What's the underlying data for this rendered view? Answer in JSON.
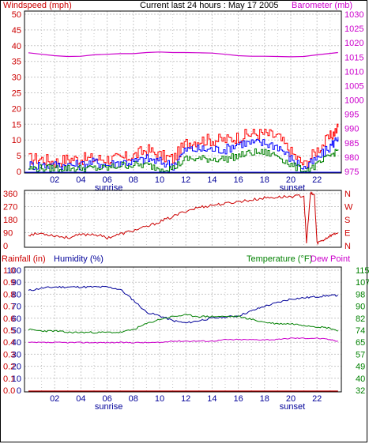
{
  "colors": {
    "wind_label": "#cc0000",
    "wind_high": "#ff0000",
    "wind_avg": "#0000ff",
    "wind_low": "#008000",
    "barometer": "#cc00cc",
    "direction": "#cc0000",
    "rain": "#cc0000",
    "humidity": "#000099",
    "temperature": "#008000",
    "dewpoint": "#cc00cc",
    "grid": "#c8c8c8",
    "frame": "#000000"
  },
  "chart_data": [
    {
      "type": "line",
      "title": "Current last 24 hours : May 17 2005",
      "left_axis_label": "Windspeed (mph)",
      "right_axis_label": "Barometer (mb)",
      "x_ticks": [
        "02",
        "04",
        "06",
        "08",
        "10",
        "12",
        "14",
        "16",
        "18",
        "20",
        "22"
      ],
      "x_annotations": [
        {
          "text": "sunrise",
          "at": "06"
        },
        {
          "text": "sunset",
          "at": "20"
        }
      ],
      "ylim_left": [
        0,
        50
      ],
      "yticks_left": [
        "0",
        "5",
        "10",
        "15",
        "20",
        "25",
        "30",
        "35",
        "40",
        "45",
        "50"
      ],
      "ylim_right": [
        975,
        1030
      ],
      "yticks_right": [
        "975",
        "980",
        "985",
        "990",
        "995",
        "1000",
        "1005",
        "1010",
        "1015",
        "1020",
        "1025",
        "1030"
      ],
      "hours": [
        0,
        1,
        2,
        3,
        4,
        5,
        6,
        7,
        8,
        9,
        10,
        11,
        12,
        13,
        14,
        15,
        16,
        17,
        18,
        19,
        20,
        21,
        22,
        23,
        23.6
      ],
      "series": [
        {
          "values": [
            4,
            4,
            3,
            4,
            4,
            4,
            4,
            4,
            5,
            7,
            5,
            4,
            9,
            10,
            10,
            10,
            11,
            12,
            12,
            11,
            6,
            2,
            7,
            11,
            14
          ]
        },
        {
          "values": [
            2,
            2,
            2,
            2,
            2,
            3,
            2,
            3,
            3,
            4,
            3,
            2,
            7,
            7,
            7,
            7,
            9,
            9,
            9,
            8,
            4,
            1,
            4,
            8,
            11
          ]
        },
        {
          "values": [
            1,
            1,
            1,
            1,
            1,
            1,
            1,
            2,
            2,
            2,
            1,
            1,
            4,
            4,
            4,
            4,
            5,
            6,
            6,
            5,
            2,
            0,
            2,
            5,
            7
          ]
        },
        {
          "axis": "right",
          "values": [
            1016.5,
            1016.0,
            1015.5,
            1015.2,
            1015.3,
            1015.8,
            1016.0,
            1016.2,
            1016.2,
            1016.6,
            1016.8,
            1016.6,
            1016.6,
            1016.5,
            1016.4,
            1016.0,
            1015.5,
            1015.3,
            1015.3,
            1015.2,
            1015.1,
            1015.2,
            1015.8,
            1016.3,
            1016.6
          ]
        }
      ]
    },
    {
      "type": "line",
      "right_axis_label_letters": [
        "N",
        "W",
        "S",
        "E",
        "N"
      ],
      "ylim": [
        0,
        360
      ],
      "yticks": [
        "0",
        "90",
        "180",
        "270",
        "360"
      ],
      "hours": [
        0,
        1,
        2,
        3,
        4,
        5,
        6,
        7,
        8,
        9,
        10,
        11,
        12,
        13,
        14,
        15,
        16,
        17,
        18,
        19,
        20,
        21,
        21.2,
        21.5,
        21.8,
        22,
        22.5,
        23,
        23.6
      ],
      "series": [
        {
          "values": [
            75,
            85,
            70,
            55,
            75,
            80,
            55,
            80,
            105,
            130,
            165,
            200,
            240,
            265,
            280,
            290,
            305,
            315,
            330,
            335,
            340,
            345,
            20,
            360,
            350,
            20,
            40,
            70,
            90
          ]
        }
      ]
    },
    {
      "type": "line",
      "left_axis_label_1": "Rainfall (in)",
      "left_axis_label_2": "Humidity (%)",
      "right_axis_label_1": "Temperature (°F)",
      "right_axis_label_2": "Dew Point",
      "x_ticks": [
        "02",
        "04",
        "06",
        "08",
        "10",
        "12",
        "14",
        "16",
        "18",
        "20",
        "22"
      ],
      "x_annotations": [
        {
          "text": "sunrise",
          "at": "06"
        },
        {
          "text": "sunset",
          "at": "20"
        }
      ],
      "ylim_rain": [
        0,
        1.0
      ],
      "yticks_rain": [
        "0.0",
        "0.1",
        "0.2",
        "0.3",
        "0.4",
        "0.5",
        "0.6",
        "0.7",
        "0.8",
        "0.9",
        "1.0"
      ],
      "ylim_humidity": [
        0,
        100
      ],
      "yticks_humidity": [
        "0",
        "10",
        "20",
        "30",
        "40",
        "50",
        "60",
        "70",
        "80",
        "90",
        "100"
      ],
      "ylim_temp": [
        32,
        115
      ],
      "yticks_temp": [
        "32",
        "40",
        "49",
        "57",
        "65",
        "74",
        "82",
        "90",
        "98",
        "107",
        "115"
      ],
      "hours": [
        0,
        1,
        2,
        3,
        4,
        5,
        6,
        7,
        8,
        9,
        10,
        11,
        12,
        13,
        14,
        15,
        16,
        17,
        18,
        19,
        20,
        21,
        22,
        23,
        23.6
      ],
      "series": [
        {
          "axis": "rain",
          "values": [
            0,
            0,
            0,
            0,
            0,
            0,
            0,
            0,
            0,
            0,
            0,
            0,
            0,
            0,
            0,
            0,
            0,
            0,
            0,
            0,
            0,
            0,
            0,
            0,
            0
          ]
        },
        {
          "axis": "humidity",
          "values": [
            83,
            85,
            86,
            86,
            86,
            86,
            86,
            84,
            75,
            65,
            62,
            58,
            56,
            58,
            60,
            61,
            62,
            66,
            70,
            73,
            76,
            77,
            78,
            79,
            79
          ]
        },
        {
          "axis": "temp",
          "values": [
            74,
            73,
            73,
            72,
            72,
            72,
            72,
            72,
            74,
            78,
            81,
            83,
            84,
            83,
            83,
            83,
            83,
            81,
            79,
            78,
            78,
            77,
            76,
            75,
            73
          ]
        },
        {
          "axis": "temp",
          "values": [
            65,
            65,
            65,
            65,
            65,
            65,
            65,
            65,
            65,
            65,
            65,
            66,
            66,
            66,
            66,
            67,
            67,
            67,
            67,
            67,
            68,
            68,
            68,
            67,
            66
          ]
        }
      ]
    }
  ]
}
